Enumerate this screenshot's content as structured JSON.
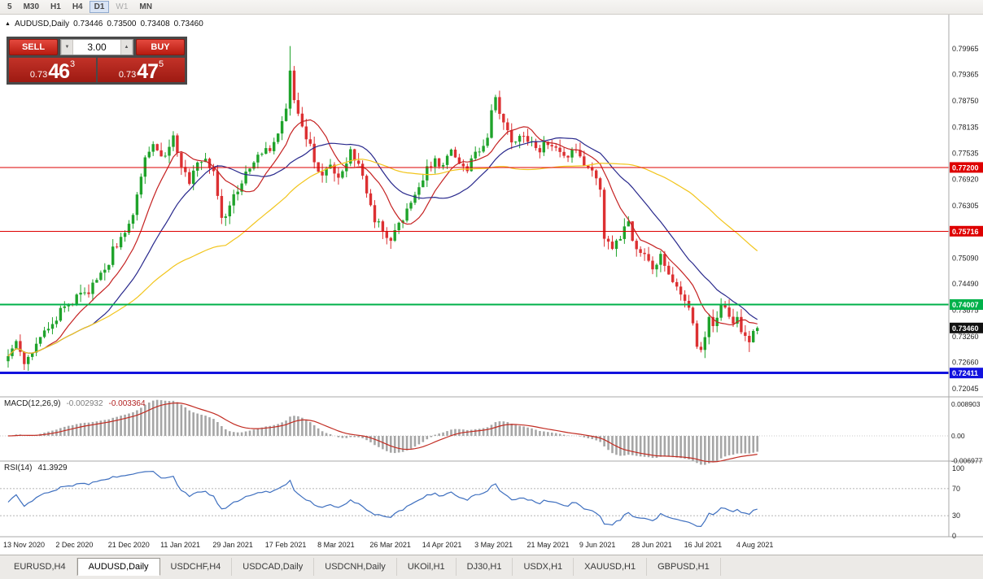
{
  "toolbar": {
    "timeframes": [
      {
        "label": "5",
        "active": false,
        "enabled": true
      },
      {
        "label": "M30",
        "active": false,
        "enabled": true
      },
      {
        "label": "H1",
        "active": false,
        "enabled": true
      },
      {
        "label": "H4",
        "active": false,
        "enabled": true
      },
      {
        "label": "D1",
        "active": true,
        "enabled": true
      },
      {
        "label": "W1",
        "active": false,
        "enabled": false
      },
      {
        "label": "MN",
        "active": false,
        "enabled": true
      }
    ]
  },
  "chart_header": {
    "symbol": "AUDUSD,Daily",
    "open": "0.73446",
    "high": "0.73500",
    "low": "0.73408",
    "close": "0.73460"
  },
  "trade_panel": {
    "sell_label": "SELL",
    "buy_label": "BUY",
    "volume": "3.00",
    "sell_price": {
      "base": "0.73",
      "pips": "46",
      "point": "3"
    },
    "buy_price": {
      "base": "0.73",
      "pips": "47",
      "point": "5"
    }
  },
  "chart_data": {
    "type": "candlestick",
    "title": "AUDUSD,Daily",
    "candle_count": 187,
    "label_every": 13,
    "x_labels": [
      "13 Nov 2020",
      "2 Dec 2020",
      "21 Dec 2020",
      "11 Jan 2021",
      "29 Jan 2021",
      "17 Feb 2021",
      "8 Mar 2021",
      "26 Mar 2021",
      "14 Apr 2021",
      "3 May 2021",
      "21 May 2021",
      "9 Jun 2021",
      "28 Jun 2021",
      "16 Jul 2021",
      "4 Aug 2021"
    ],
    "y_ticks": [
      "0.79965",
      "0.79365",
      "0.78750",
      "0.78135",
      "0.77535",
      "0.76920",
      "0.76305",
      "0.75690",
      "0.75090",
      "0.74490",
      "0.73875",
      "0.73260",
      "0.72660",
      "0.72045"
    ],
    "last_close": 0.7346,
    "up_color": "#1FA32B",
    "down_color": "#DC3032",
    "price_anchors": [
      [
        0,
        0.7285
      ],
      [
        2,
        0.732
      ],
      [
        4,
        0.7258
      ],
      [
        6,
        0.7292
      ],
      [
        9,
        0.7335
      ],
      [
        13,
        0.7382
      ],
      [
        17,
        0.7418
      ],
      [
        21,
        0.7442
      ],
      [
        24,
        0.7475
      ],
      [
        26,
        0.7525
      ],
      [
        28,
        0.7555
      ],
      [
        30,
        0.7588
      ],
      [
        32,
        0.765
      ],
      [
        34,
        0.7745
      ],
      [
        36,
        0.7778
      ],
      [
        38,
        0.7738
      ],
      [
        39,
        0.7758
      ],
      [
        41,
        0.7785
      ],
      [
        43,
        0.7722
      ],
      [
        45,
        0.7692
      ],
      [
        47,
        0.7722
      ],
      [
        49,
        0.7748
      ],
      [
        51,
        0.7705
      ],
      [
        53,
        0.7592
      ],
      [
        55,
        0.7635
      ],
      [
        57,
        0.7668
      ],
      [
        59,
        0.77
      ],
      [
        61,
        0.7732
      ],
      [
        63,
        0.7758
      ],
      [
        65,
        0.7762
      ],
      [
        67,
        0.7792
      ],
      [
        69,
        0.7868
      ],
      [
        70,
        0.7948
      ],
      [
        71,
        0.7872
      ],
      [
        73,
        0.7808
      ],
      [
        75,
        0.7768
      ],
      [
        78,
        0.7692
      ],
      [
        80,
        0.7728
      ],
      [
        82,
        0.7702
      ],
      [
        85,
        0.7758
      ],
      [
        87,
        0.773
      ],
      [
        89,
        0.7662
      ],
      [
        91,
        0.76
      ],
      [
        93,
        0.7568
      ],
      [
        95,
        0.7545
      ],
      [
        97,
        0.7588
      ],
      [
        99,
        0.7618
      ],
      [
        101,
        0.7652
      ],
      [
        104,
        0.7718
      ],
      [
        106,
        0.7742
      ],
      [
        108,
        0.7722
      ],
      [
        110,
        0.7758
      ],
      [
        112,
        0.7738
      ],
      [
        114,
        0.7718
      ],
      [
        116,
        0.7748
      ],
      [
        117,
        0.7762
      ],
      [
        119,
        0.7788
      ],
      [
        120,
        0.7852
      ],
      [
        121,
        0.7878
      ],
      [
        122,
        0.7838
      ],
      [
        124,
        0.7798
      ],
      [
        126,
        0.7778
      ],
      [
        128,
        0.7792
      ],
      [
        130,
        0.7778
      ],
      [
        132,
        0.7758
      ],
      [
        134,
        0.7782
      ],
      [
        136,
        0.7758
      ],
      [
        138,
        0.7738
      ],
      [
        140,
        0.7762
      ],
      [
        142,
        0.7742
      ],
      [
        144,
        0.7718
      ],
      [
        146,
        0.7695
      ],
      [
        147,
        0.7658
      ],
      [
        148,
        0.7562
      ],
      [
        150,
        0.7528
      ],
      [
        152,
        0.7562
      ],
      [
        154,
        0.7588
      ],
      [
        156,
        0.7532
      ],
      [
        158,
        0.7512
      ],
      [
        160,
        0.7488
      ],
      [
        162,
        0.7512
      ],
      [
        164,
        0.7472
      ],
      [
        166,
        0.7448
      ],
      [
        168,
        0.7415
      ],
      [
        169,
        0.7398
      ],
      [
        170,
        0.7352
      ],
      [
        171,
        0.7312
      ],
      [
        172,
        0.7292
      ],
      [
        173,
        0.7332
      ],
      [
        174,
        0.7362
      ],
      [
        175,
        0.7345
      ],
      [
        176,
        0.7368
      ],
      [
        177,
        0.7392
      ],
      [
        178,
        0.7398
      ],
      [
        179,
        0.7372
      ],
      [
        180,
        0.7348
      ],
      [
        181,
        0.7382
      ],
      [
        182,
        0.7342
      ],
      [
        183,
        0.7328
      ],
      [
        184,
        0.7306
      ],
      [
        185,
        0.7344
      ],
      [
        186,
        0.7346
      ]
    ],
    "forced_extremes": [
      {
        "i": 70,
        "high": 0.8003
      },
      {
        "i": 172,
        "low": 0.7289
      },
      {
        "i": 178,
        "high": 0.7409
      },
      {
        "i": 184,
        "low": 0.729
      }
    ],
    "moving_averages": [
      {
        "name": "ma-fast",
        "period": 10,
        "color": "#C52222"
      },
      {
        "name": "ma-mid",
        "period": 22,
        "color": "#28288C"
      },
      {
        "name": "ma-slow",
        "period": 55,
        "color": "#F2C51C"
      }
    ],
    "hlines": [
      {
        "price": 0.772,
        "label": "0.77200",
        "color": "#DE0000",
        "width": 1
      },
      {
        "price": 0.75716,
        "label": "0.75716",
        "color": "#DE0000",
        "width": 1
      },
      {
        "price": 0.74007,
        "label": "0.74007",
        "color": "#00B14A",
        "width": 2
      },
      {
        "price": 0.72411,
        "label": "0.72411",
        "color": "#1212DE",
        "width": 3
      }
    ],
    "current_price": {
      "label": "0.73460",
      "value": 0.7346,
      "color": "#111111"
    },
    "indicators": {
      "macd": {
        "label": "MACD(12,26,9)",
        "value1": "-0.002932",
        "value2": "-0.003364",
        "fast": 12,
        "slow": 26,
        "signal": 9,
        "scale": [
          "0.008903",
          "0.00",
          "-0.006977"
        ],
        "hist_color": "#A6A6A6",
        "signal_color": "#C22C22"
      },
      "rsi": {
        "label": "RSI(14)",
        "value": "41.3929",
        "period": 14,
        "levels": [
          "100",
          "70",
          "30",
          "0"
        ],
        "line_color": "#3E6FBF"
      }
    }
  },
  "tabs": [
    {
      "label": "EURUSD,H4",
      "active": false
    },
    {
      "label": "AUDUSD,Daily",
      "active": true
    },
    {
      "label": "USDCHF,H4",
      "active": false
    },
    {
      "label": "USDCAD,Daily",
      "active": false
    },
    {
      "label": "USDCNH,Daily",
      "active": false
    },
    {
      "label": "UKOil,H1",
      "active": false
    },
    {
      "label": "DJ30,H1",
      "active": false
    },
    {
      "label": "USDX,H1",
      "active": false
    },
    {
      "label": "XAUUSD,H1",
      "active": false
    },
    {
      "label": "GBPUSD,H1",
      "active": false
    }
  ]
}
